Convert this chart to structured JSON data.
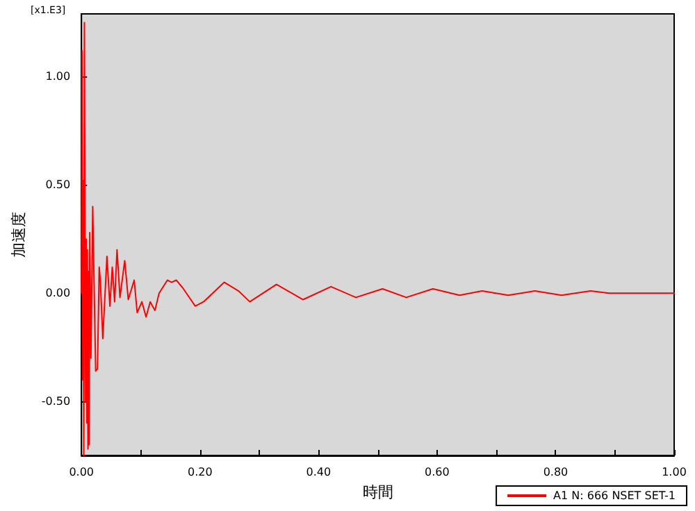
{
  "chart_data": {
    "type": "line",
    "xlabel": "時間",
    "ylabel": "加速度",
    "annotations": [
      "[x1.E3]"
    ],
    "x": [
      0,
      0.001,
      0.002,
      0.003,
      0.004,
      0.005,
      0.006,
      0.007,
      0.008,
      0.009,
      0.01,
      0.011,
      0.012,
      0.013,
      0.014,
      0.016,
      0.019,
      0.024,
      0.027,
      0.03,
      0.032,
      0.036,
      0.043,
      0.048,
      0.052,
      0.056,
      0.06,
      0.065,
      0.073,
      0.079,
      0.089,
      0.094,
      0.102,
      0.109,
      0.116,
      0.124,
      0.131,
      0.145,
      0.152,
      0.16,
      0.172,
      0.192,
      0.206,
      0.241,
      0.265,
      0.284,
      0.329,
      0.374,
      0.421,
      0.463,
      0.508,
      0.548,
      0.593,
      0.638,
      0.676,
      0.72,
      0.765,
      0.81,
      0.859,
      0.89,
      0.93,
      1.0
    ],
    "series": [
      {
        "name": "A1 N: 666 NSET SET-1",
        "color": "#ff0000",
        "values": [
          0,
          1.12,
          -0.4,
          0.52,
          -0.75,
          1.25,
          0.25,
          -0.5,
          0.25,
          -0.6,
          0.2,
          -0.72,
          0.1,
          -0.7,
          0.28,
          -0.3,
          0.4,
          -0.36,
          -0.35,
          0.12,
          0.05,
          -0.21,
          0.17,
          -0.06,
          0.12,
          -0.04,
          0.2,
          -0.02,
          0.15,
          -0.03,
          0.06,
          -0.09,
          -0.04,
          -0.11,
          -0.04,
          -0.08,
          0,
          0.06,
          0.05,
          0.06,
          0.02,
          -0.06,
          -0.04,
          0.05,
          0.01,
          -0.04,
          0.04,
          -0.03,
          0.03,
          -0.02,
          0.02,
          -0.02,
          0.02,
          -0.01,
          0.01,
          -0.01,
          0.01,
          -0.01,
          0.01,
          0,
          0,
          0
        ]
      }
    ],
    "xlim": [
      0,
      1
    ],
    "ylim": [
      -0.75,
      1.29
    ],
    "xticks": [
      {
        "value": 0,
        "label": "0.00"
      },
      {
        "value": 0.1,
        "label": null
      },
      {
        "value": 0.2,
        "label": "0.20"
      },
      {
        "value": 0.3,
        "label": null
      },
      {
        "value": 0.4,
        "label": "0.40"
      },
      {
        "value": 0.5,
        "label": null
      },
      {
        "value": 0.6,
        "label": "0.60"
      },
      {
        "value": 0.7,
        "label": null
      },
      {
        "value": 0.8,
        "label": "0.80"
      },
      {
        "value": 0.9,
        "label": null
      },
      {
        "value": 1,
        "label": "1.00"
      }
    ],
    "yticks": [
      {
        "value": -0.5,
        "label": "-0.50"
      },
      {
        "value": 0,
        "label": "0.00"
      },
      {
        "value": 0.5,
        "label": "0.50"
      },
      {
        "value": 1,
        "label": "1.00"
      }
    ],
    "legend": "bottom right",
    "grid": false,
    "marker": "none",
    "line_style": "solid"
  }
}
